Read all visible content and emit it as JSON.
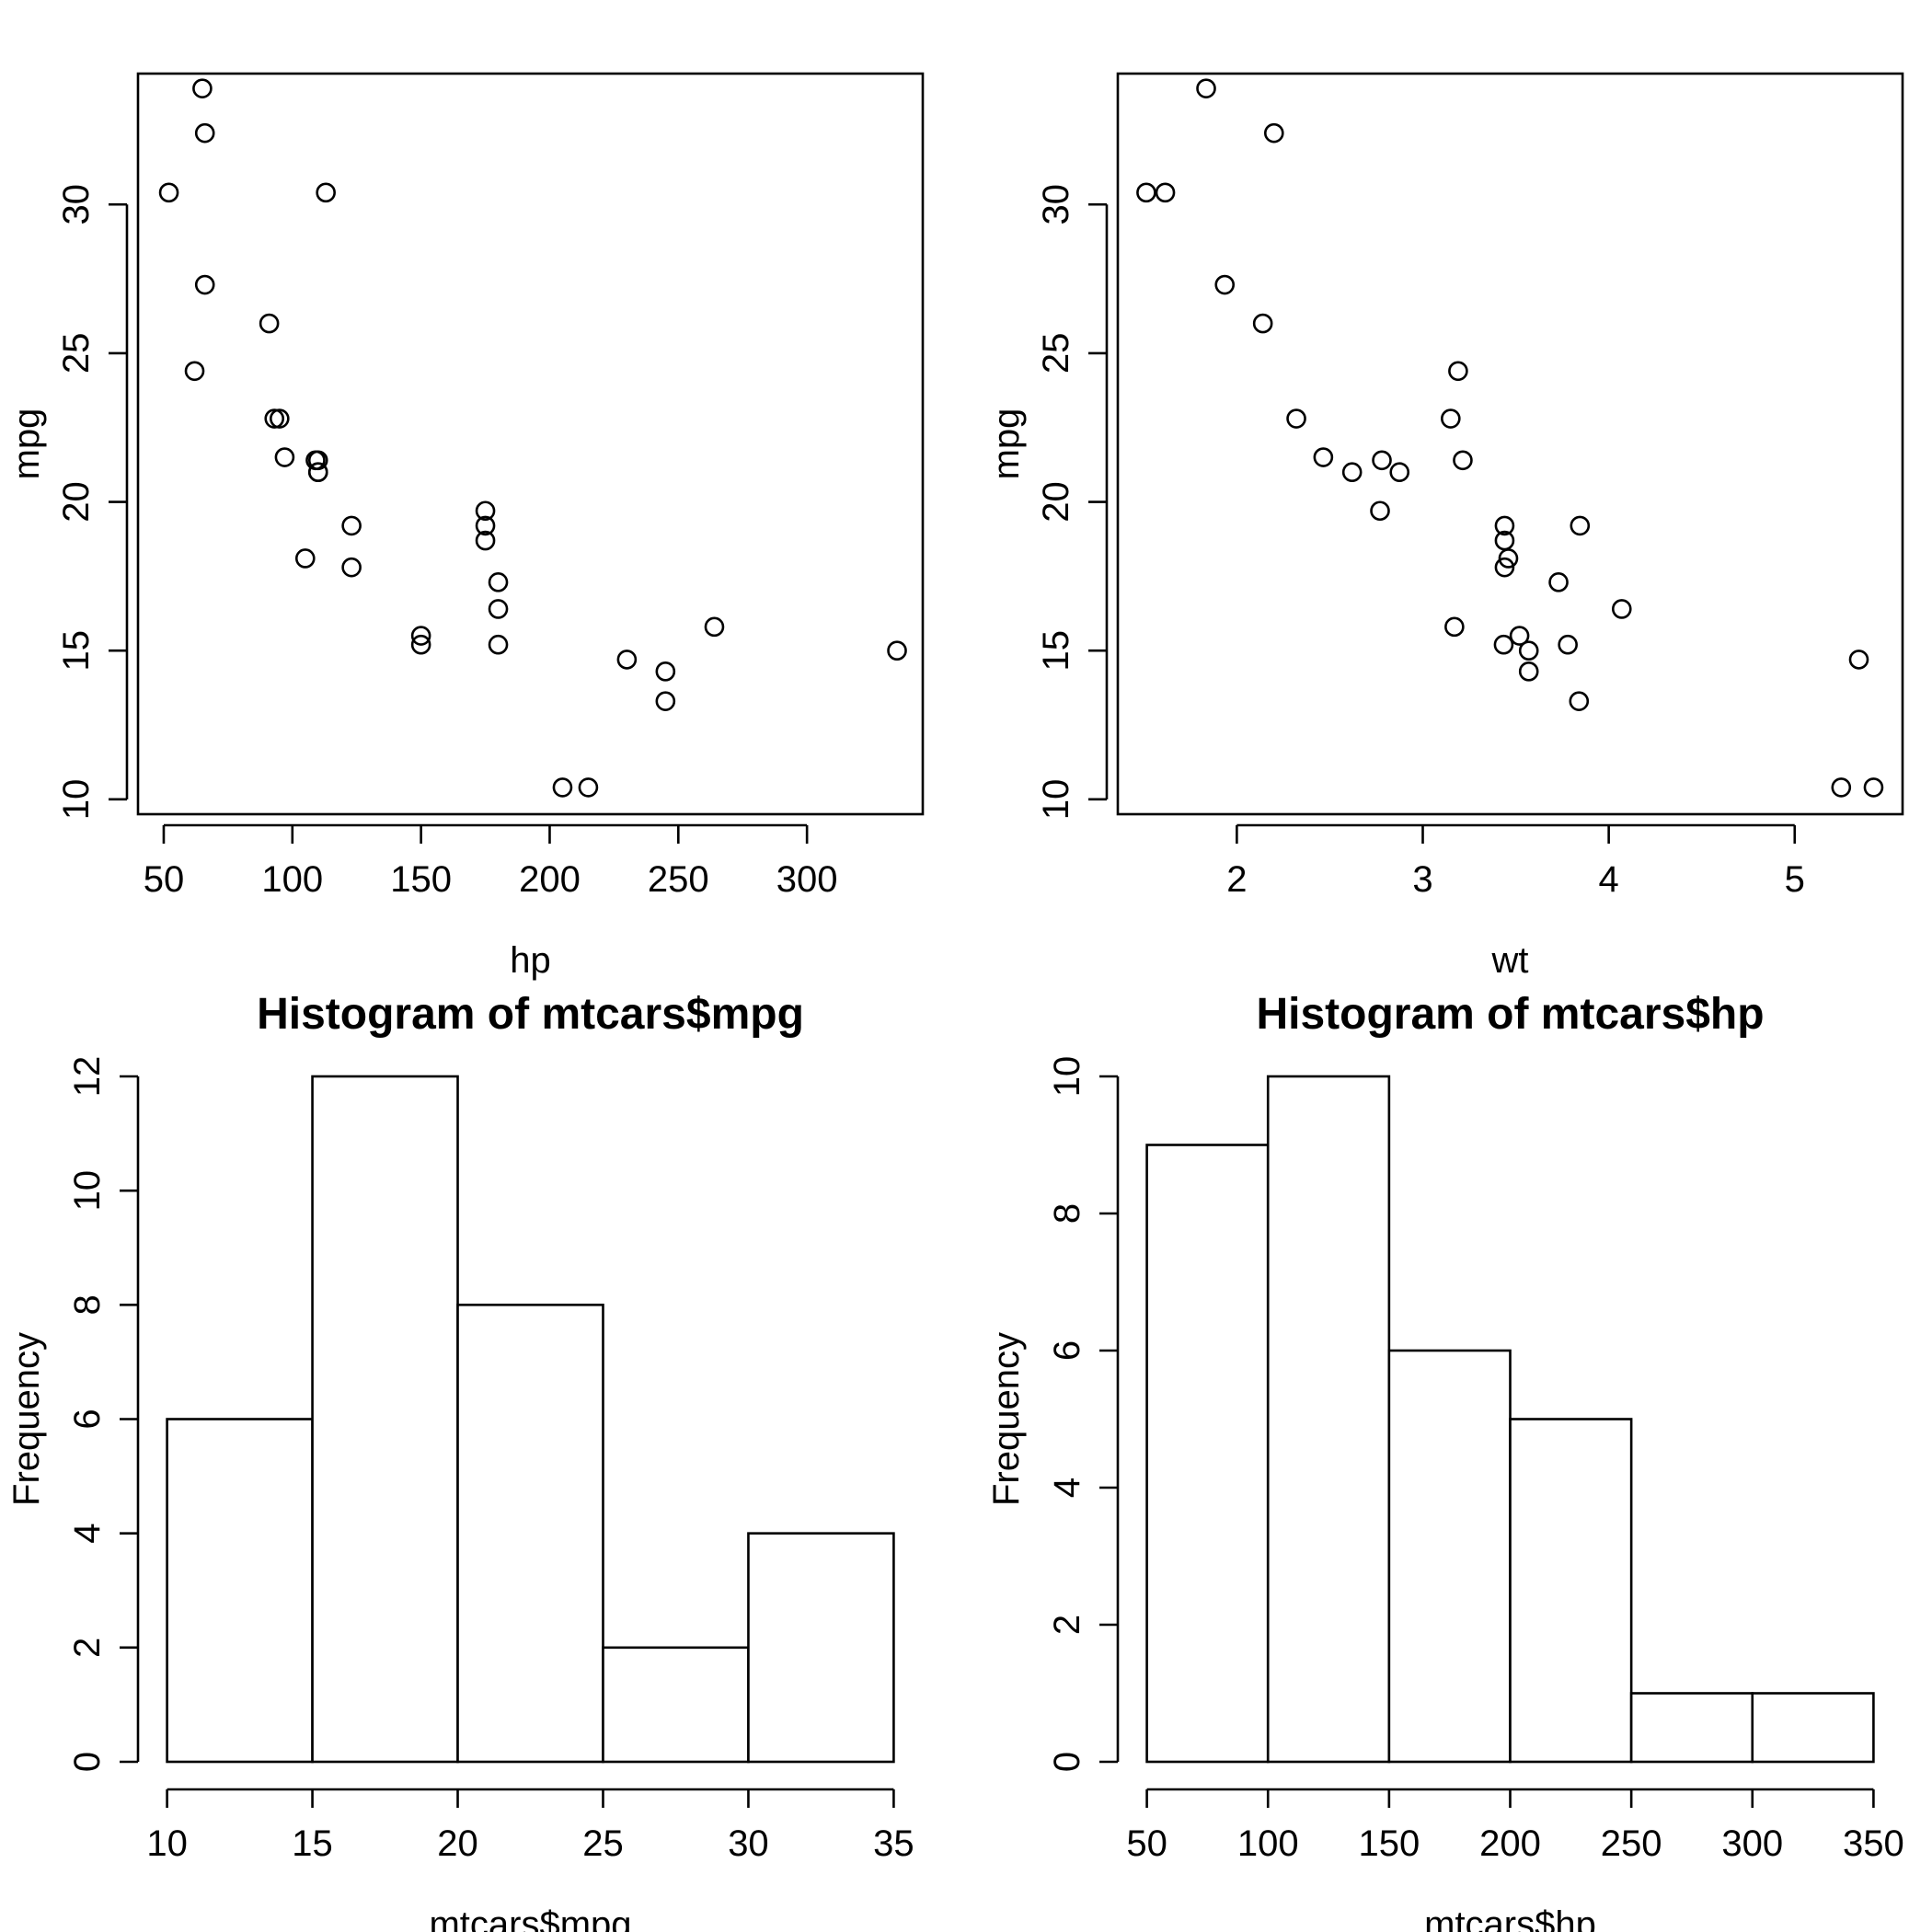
{
  "chart_data": [
    {
      "type": "scatter",
      "title": "",
      "xlabel": "hp",
      "ylabel": "mpg",
      "xlim": [
        40,
        345
      ],
      "ylim": [
        9.5,
        34.4
      ],
      "xticks": [
        50,
        100,
        150,
        200,
        250,
        300
      ],
      "yticks": [
        10,
        15,
        20,
        25,
        30
      ],
      "grid": false,
      "points": [
        [
          110,
          21.0
        ],
        [
          110,
          21.0
        ],
        [
          93,
          22.8
        ],
        [
          110,
          21.4
        ],
        [
          175,
          18.7
        ],
        [
          105,
          18.1
        ],
        [
          245,
          14.3
        ],
        [
          62,
          24.4
        ],
        [
          95,
          22.8
        ],
        [
          123,
          19.2
        ],
        [
          123,
          17.8
        ],
        [
          180,
          16.4
        ],
        [
          180,
          17.3
        ],
        [
          180,
          15.2
        ],
        [
          205,
          10.4
        ],
        [
          215,
          10.4
        ],
        [
          230,
          14.7
        ],
        [
          66,
          32.4
        ],
        [
          52,
          30.4
        ],
        [
          65,
          33.9
        ],
        [
          97,
          21.5
        ],
        [
          150,
          15.5
        ],
        [
          150,
          15.2
        ],
        [
          245,
          13.3
        ],
        [
          175,
          19.2
        ],
        [
          66,
          27.3
        ],
        [
          91,
          26.0
        ],
        [
          113,
          30.4
        ],
        [
          264,
          15.8
        ],
        [
          175,
          19.7
        ],
        [
          335,
          15.0
        ],
        [
          109,
          21.4
        ]
      ]
    },
    {
      "type": "scatter",
      "title": "",
      "xlabel": "wt",
      "ylabel": "mpg",
      "xlim": [
        1.36,
        5.58
      ],
      "ylim": [
        9.5,
        34.4
      ],
      "xticks": [
        2,
        3,
        4,
        5
      ],
      "yticks": [
        10,
        15,
        20,
        25,
        30
      ],
      "grid": false,
      "points": [
        [
          2.62,
          21.0
        ],
        [
          2.875,
          21.0
        ],
        [
          2.32,
          22.8
        ],
        [
          3.215,
          21.4
        ],
        [
          3.44,
          18.7
        ],
        [
          3.46,
          18.1
        ],
        [
          3.57,
          14.3
        ],
        [
          3.19,
          24.4
        ],
        [
          3.15,
          22.8
        ],
        [
          3.44,
          19.2
        ],
        [
          3.44,
          17.8
        ],
        [
          4.07,
          16.4
        ],
        [
          3.73,
          17.3
        ],
        [
          3.78,
          15.2
        ],
        [
          5.25,
          10.4
        ],
        [
          5.424,
          10.4
        ],
        [
          5.345,
          14.7
        ],
        [
          2.2,
          32.4
        ],
        [
          1.615,
          30.4
        ],
        [
          1.835,
          33.9
        ],
        [
          2.465,
          21.5
        ],
        [
          3.52,
          15.5
        ],
        [
          3.435,
          15.2
        ],
        [
          3.84,
          13.3
        ],
        [
          3.845,
          19.2
        ],
        [
          1.935,
          27.3
        ],
        [
          2.14,
          26.0
        ],
        [
          1.513,
          30.4
        ],
        [
          3.17,
          15.8
        ],
        [
          2.77,
          19.7
        ],
        [
          3.57,
          15.0
        ],
        [
          2.78,
          21.4
        ]
      ]
    },
    {
      "type": "bar",
      "title": "Histogram of mtcars$mpg",
      "xlabel": "mtcars$mpg",
      "ylabel": "Frequency",
      "xlim": [
        10,
        35
      ],
      "ylim": [
        0,
        12
      ],
      "xticks": [
        10,
        15,
        20,
        25,
        30,
        35
      ],
      "yticks": [
        0,
        2,
        4,
        6,
        8,
        10,
        12
      ],
      "grid": false,
      "breaks": [
        10,
        15,
        20,
        25,
        30,
        35
      ],
      "values": [
        6,
        12,
        8,
        2,
        4
      ]
    },
    {
      "type": "bar",
      "title": "Histogram of mtcars$hp",
      "xlabel": "mtcars$hp",
      "ylabel": "Frequency",
      "xlim": [
        50,
        350
      ],
      "ylim": [
        0,
        10
      ],
      "xticks": [
        50,
        100,
        150,
        200,
        250,
        300,
        350
      ],
      "yticks": [
        0,
        2,
        4,
        6,
        8,
        10
      ],
      "grid": false,
      "breaks": [
        50,
        100,
        150,
        200,
        250,
        300,
        350
      ],
      "values": [
        9,
        10,
        6,
        5,
        1,
        1
      ]
    }
  ]
}
